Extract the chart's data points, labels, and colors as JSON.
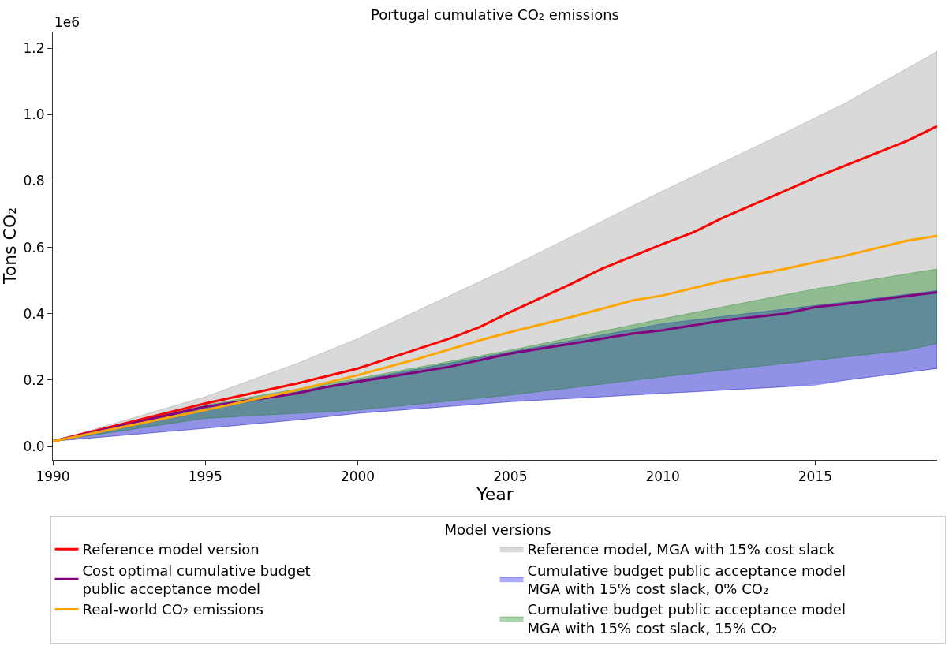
{
  "chart_data": {
    "type": "line",
    "title": "Portugal cumulative CO₂ emissions",
    "xlabel": "Year",
    "ylabel": "Tons CO₂",
    "legend_title": "Model versions",
    "legend": "bottom",
    "grid": false,
    "annotations": [
      "1e6"
    ],
    "xlim": [
      1990,
      2019
    ],
    "xticks": [
      1990,
      1995,
      2000,
      2005,
      2010,
      2015
    ],
    "ylim": [
      -0.04,
      1.25
    ],
    "yticks": [
      {
        "value": 0,
        "label": "0.0"
      },
      0.2,
      0.4,
      0.6,
      0.8,
      {
        "value": 1,
        "label": "1.0"
      },
      1.2
    ],
    "series": [
      {
        "name": "Reference model version",
        "color": "#ff0000",
        "x": [
          1990,
          1995,
          1998,
          2000,
          2001,
          2003,
          2004,
          2005,
          2007,
          2008,
          2010,
          2011,
          2012,
          2014,
          2015,
          2018,
          2019
        ],
        "values": [
          0.016,
          0.13,
          0.19,
          0.235,
          0.265,
          0.325,
          0.36,
          0.405,
          0.49,
          0.535,
          0.61,
          0.645,
          0.69,
          0.77,
          0.81,
          0.92,
          0.965
        ]
      },
      {
        "name": "Reference model, MGA with 15% cost slack",
        "type": "area",
        "color": "#808080",
        "x": [
          1990,
          1995,
          1998,
          2000,
          2005,
          2010,
          2014,
          2016,
          2019
        ],
        "values": [
          null,
          null,
          null,
          null,
          null,
          null,
          null,
          null,
          null
        ],
        "lower": [
          0.016,
          0.055,
          0.08,
          0.1,
          0.135,
          0.16,
          0.18,
          0.2,
          0.235
        ],
        "upper": [
          0.016,
          0.15,
          0.25,
          0.325,
          0.54,
          0.77,
          0.945,
          1.035,
          1.19
        ]
      },
      {
        "name": "Cost optimal cumulative budget\npublic acceptance model",
        "color": "#800080",
        "x": [
          1990,
          1995,
          1998,
          1999,
          2000,
          2002,
          2003,
          2005,
          2007,
          2009,
          2010,
          2011,
          2012,
          2014,
          2015,
          2016,
          2019
        ],
        "values": [
          0.016,
          0.12,
          0.16,
          0.18,
          0.195,
          0.225,
          0.24,
          0.28,
          0.31,
          0.34,
          0.35,
          0.365,
          0.38,
          0.4,
          0.42,
          0.43,
          0.465
        ]
      },
      {
        "name": "Cumulative budget public acceptance model\nMGA with 15% cost slack, 0% CO₂",
        "type": "area",
        "color": "#0000ff",
        "x": [
          1990,
          1995,
          1998,
          2000,
          2005,
          2010,
          2015,
          2016,
          2019
        ],
        "values": [
          null,
          null,
          null,
          null,
          null,
          null,
          null,
          null,
          null
        ],
        "lower": [
          0.016,
          0.055,
          0.08,
          0.1,
          0.135,
          0.16,
          0.185,
          0.2,
          0.235
        ],
        "upper": [
          0.016,
          0.122,
          0.165,
          0.2,
          0.285,
          0.37,
          0.425,
          0.435,
          0.47
        ]
      },
      {
        "name": "Real-world CO₂ emissions",
        "color": "#ffa500",
        "x": [
          1990,
          1995,
          1998,
          2000,
          2002,
          2004,
          2005,
          2007,
          2009,
          2010,
          2012,
          2014,
          2016,
          2018,
          2019
        ],
        "values": [
          0.016,
          0.11,
          0.17,
          0.215,
          0.265,
          0.32,
          0.345,
          0.39,
          0.44,
          0.455,
          0.5,
          0.535,
          0.575,
          0.62,
          0.635
        ]
      },
      {
        "name": "Cumulative budget public acceptance model\nMGA with 15% cost slack, 15% CO₂",
        "type": "area",
        "color": "#008000",
        "x": [
          1990,
          1995,
          2000,
          2005,
          2010,
          2015,
          2018,
          2019
        ],
        "values": [
          null,
          null,
          null,
          null,
          null,
          null,
          null,
          null
        ],
        "lower": [
          0.016,
          0.085,
          0.11,
          0.155,
          0.21,
          0.26,
          0.29,
          0.31
        ],
        "upper": [
          0.016,
          0.125,
          0.205,
          0.29,
          0.385,
          0.475,
          0.52,
          0.535
        ]
      }
    ]
  }
}
